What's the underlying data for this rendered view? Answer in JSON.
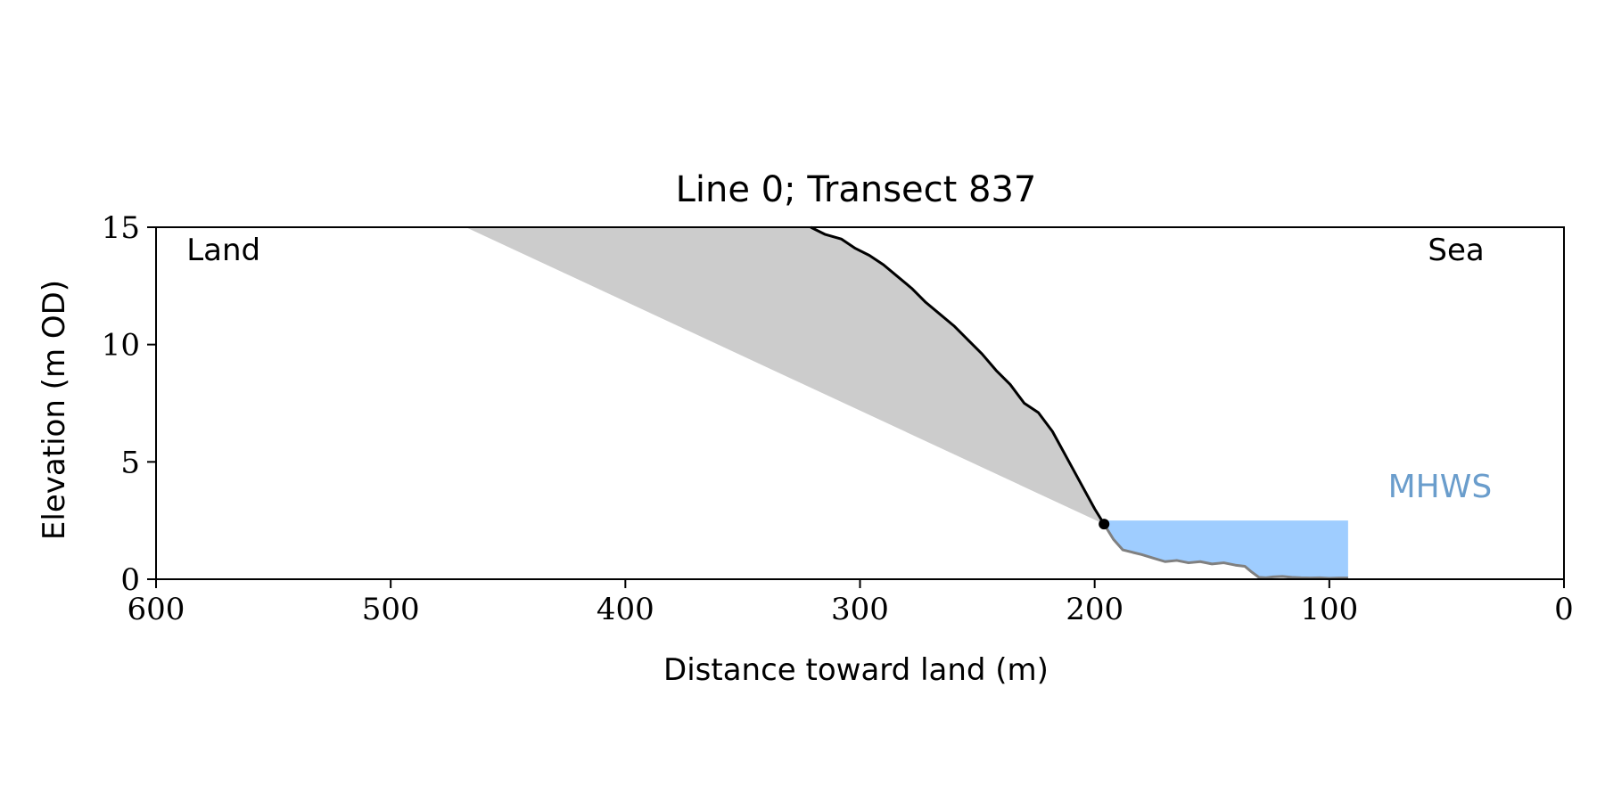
{
  "chart_data": {
    "type": "area",
    "title": "Line 0; Transect 837",
    "xlabel": "Distance toward land (m)",
    "ylabel": "Elevation (m OD)",
    "xlim": [
      600,
      0
    ],
    "ylim": [
      0,
      15
    ],
    "x_ticks": [
      600,
      500,
      400,
      300,
      200,
      100,
      0
    ],
    "y_ticks": [
      0,
      5,
      10,
      15
    ],
    "x_tick_labels": [
      "600",
      "500",
      "400",
      "300",
      "200",
      "100",
      "0"
    ],
    "y_tick_labels": [
      "0",
      "5",
      "10",
      "15"
    ],
    "grid": false,
    "annotations": {
      "land": {
        "text": "Land",
        "x": 587,
        "y": 13.6
      },
      "sea": {
        "text": "Sea",
        "x": 58,
        "y": 13.6
      },
      "mhws": {
        "text": "MHWS",
        "x": 75,
        "y": 3.5
      }
    },
    "mhws": {
      "elevation": 2.5,
      "x_start": 196,
      "x_end": 92
    },
    "cliff_toe": {
      "x": 196,
      "y": 2.35
    },
    "projection_line": {
      "from": [
        196,
        2.35
      ],
      "to": [
        468,
        15
      ]
    },
    "cliff_profile": {
      "x": [
        321,
        315,
        308,
        302,
        296,
        290,
        284,
        278,
        272,
        266,
        260,
        254,
        248,
        242,
        236,
        230,
        224,
        218,
        212,
        206,
        200,
        196
      ],
      "y": [
        15.0,
        14.7,
        14.5,
        14.1,
        13.8,
        13.4,
        12.9,
        12.4,
        11.8,
        11.3,
        10.8,
        10.2,
        9.6,
        8.9,
        8.3,
        7.5,
        7.1,
        6.3,
        5.2,
        4.1,
        3.0,
        2.35
      ]
    },
    "beach_profile": {
      "x": [
        196,
        192,
        188,
        184,
        180,
        175,
        170,
        165,
        160,
        155,
        150,
        145,
        140,
        136,
        133,
        130,
        127,
        124,
        120,
        116,
        112,
        108,
        104,
        100,
        96,
        92
      ],
      "y": [
        2.35,
        1.7,
        1.25,
        1.15,
        1.05,
        0.9,
        0.75,
        0.8,
        0.7,
        0.75,
        0.65,
        0.7,
        0.6,
        0.55,
        0.3,
        0.08,
        0.06,
        0.1,
        0.12,
        0.08,
        0.06,
        0.05,
        0.06,
        0.04,
        0.05,
        0.05
      ]
    },
    "colors": {
      "cliff_line": "#000000",
      "beach_line": "#808080",
      "erosion_fill": "#cccccc",
      "water_fill": "#9fcdff",
      "mhws_label": "#6a9dcc",
      "toe_marker": "#000000"
    }
  }
}
